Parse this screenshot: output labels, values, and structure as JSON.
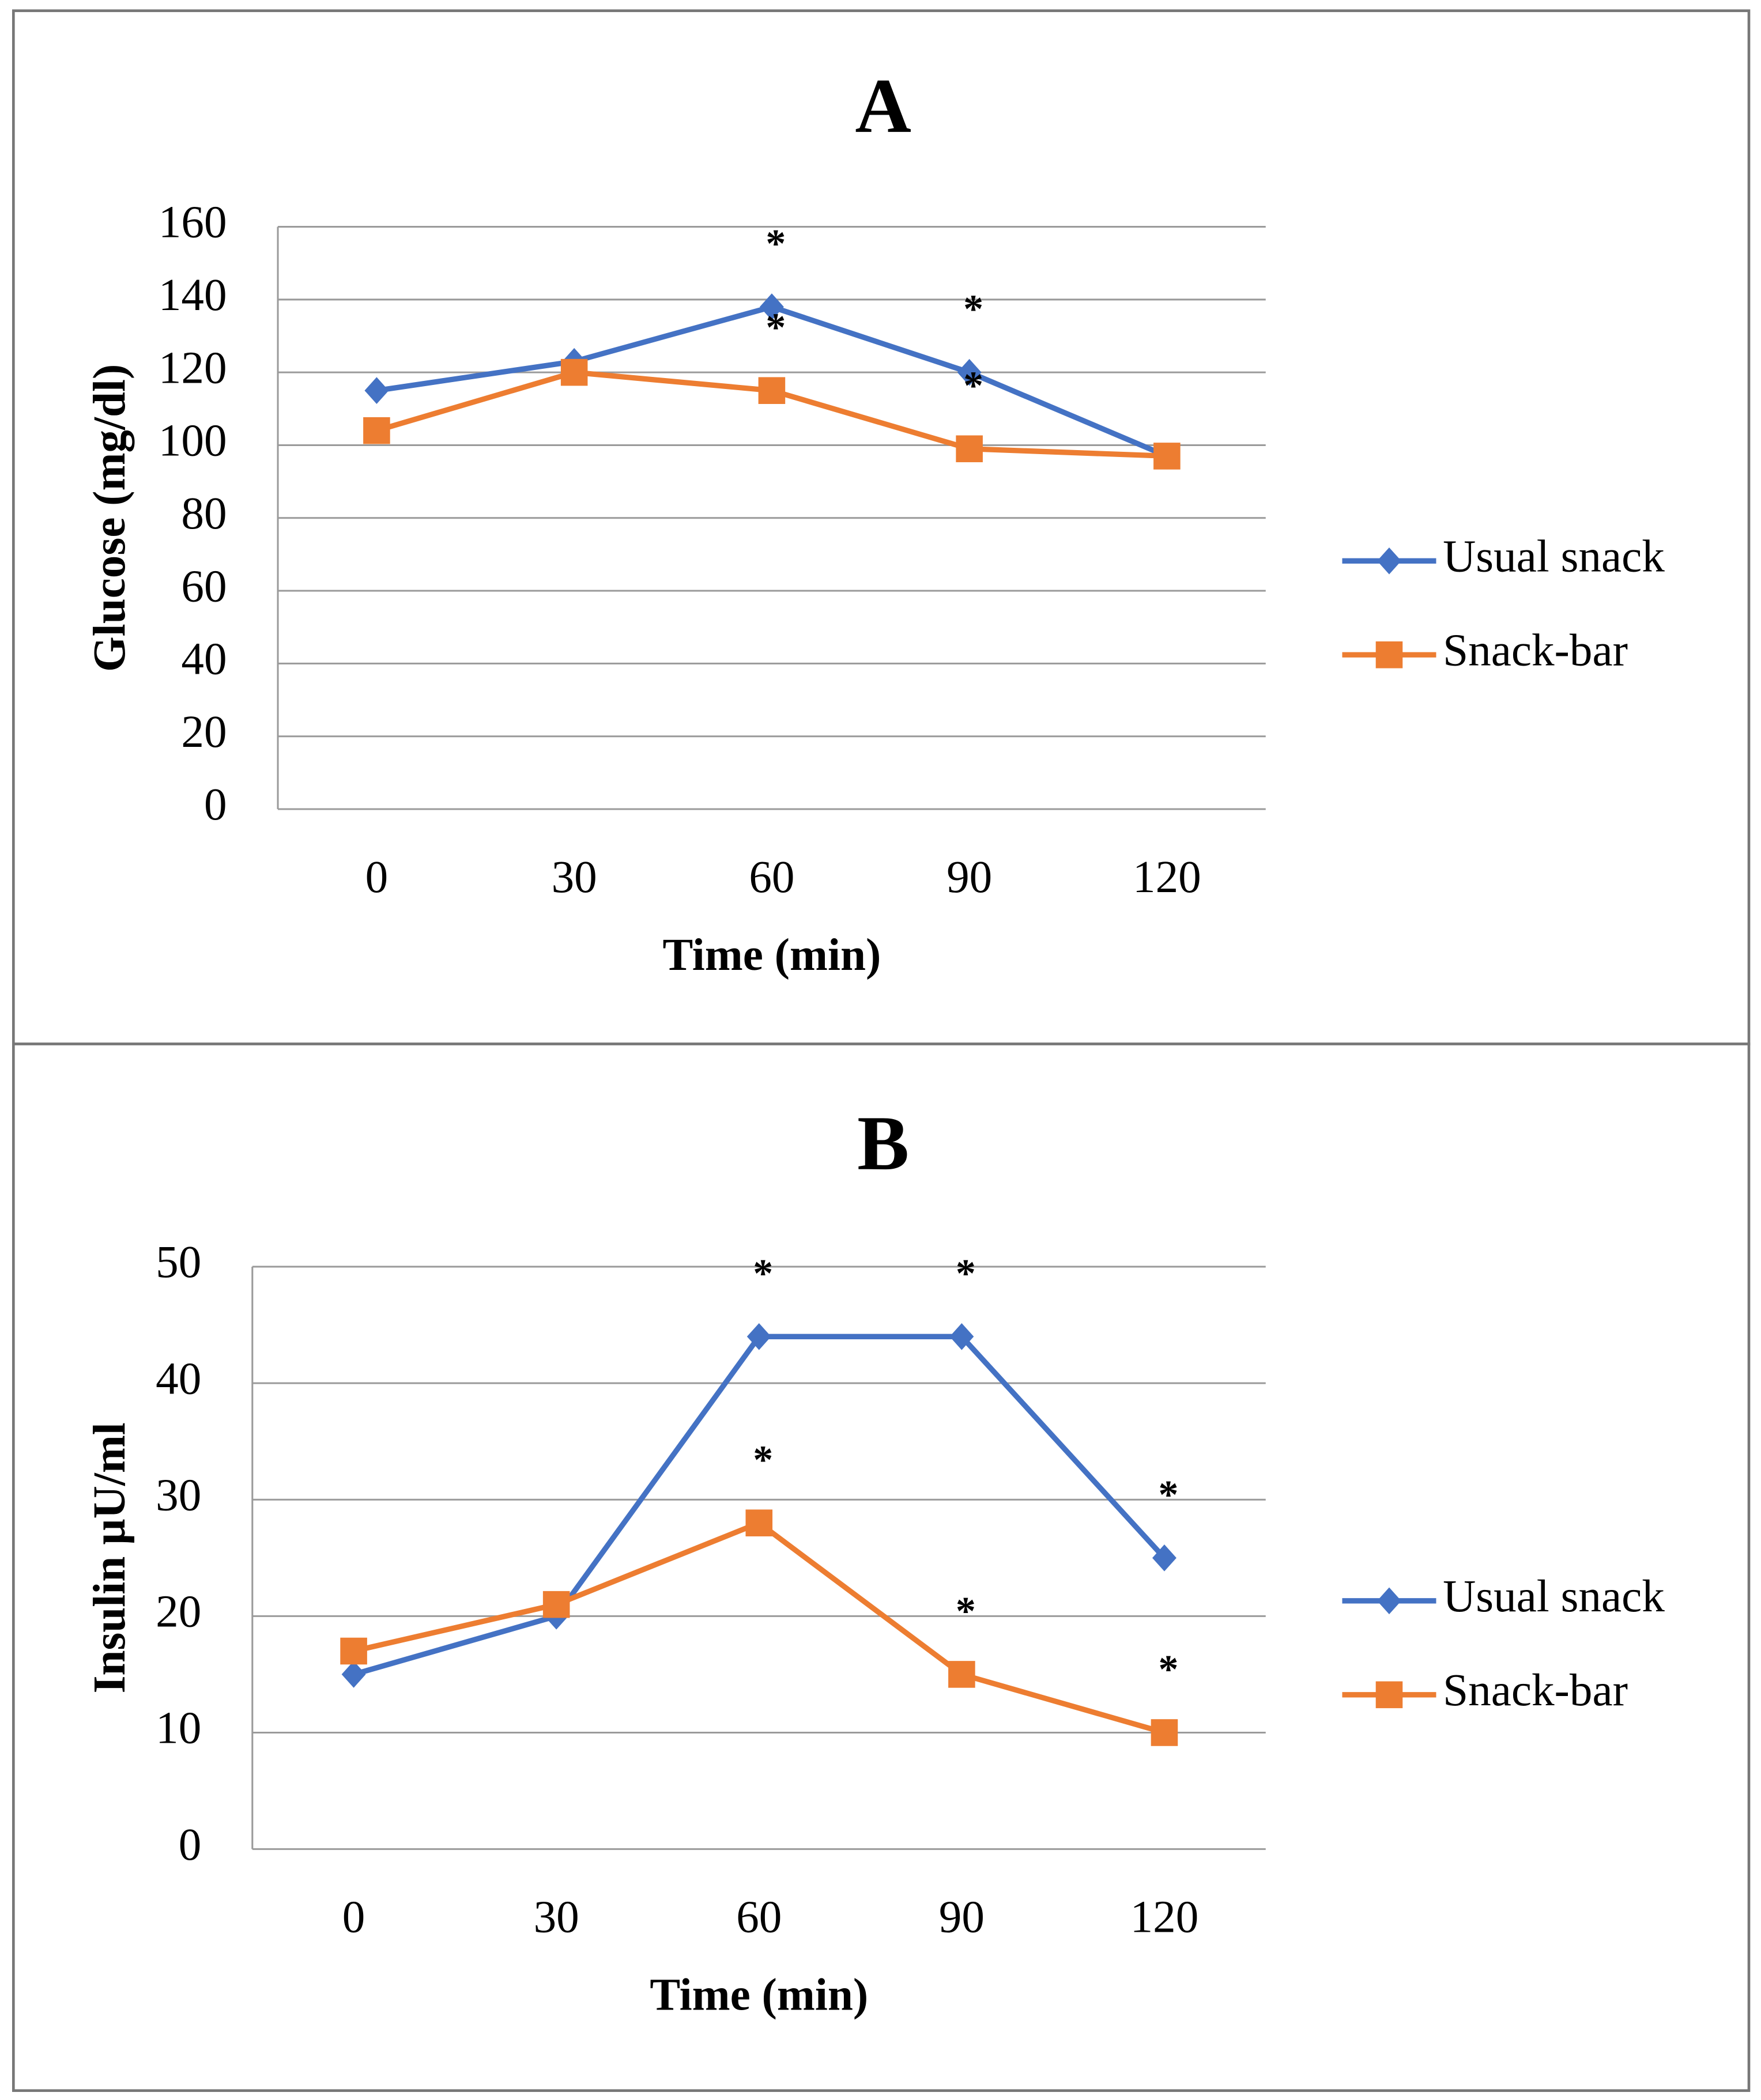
{
  "chart_data": [
    {
      "type": "line",
      "title": "A",
      "x_label": "Time (min)",
      "y_label": "Glucose (mg/dl)",
      "categories": [
        "0",
        "30",
        "60",
        "90",
        "120"
      ],
      "series": [
        {
          "name": "Usual snack",
          "color": "#4472c4",
          "marker": "diamond",
          "values": [
            115,
            123,
            138,
            120,
            97
          ]
        },
        {
          "name": "Snack-bar",
          "color": "#ed7d31",
          "marker": "square",
          "values": [
            104,
            120,
            115,
            99,
            97
          ]
        }
      ],
      "ylim": [
        0,
        160
      ],
      "yticks": [
        0,
        20,
        40,
        60,
        80,
        100,
        120,
        140,
        160
      ],
      "grid": true,
      "legend": "right",
      "annotations": [
        {
          "text": "*",
          "series": 0,
          "index": 2
        },
        {
          "text": "*",
          "series": 1,
          "index": 2
        },
        {
          "text": "*",
          "series": 0,
          "index": 3
        },
        {
          "text": "*",
          "series": 1,
          "index": 3
        }
      ]
    },
    {
      "type": "line",
      "title": "B",
      "x_label": "Time (min)",
      "y_label": "Insulin µU/ml",
      "categories": [
        "0",
        "30",
        "60",
        "90",
        "120"
      ],
      "series": [
        {
          "name": "Usual snack",
          "color": "#4472c4",
          "marker": "diamond",
          "values": [
            15,
            20,
            44,
            44,
            25
          ]
        },
        {
          "name": "Snack-bar",
          "color": "#ed7d31",
          "marker": "square",
          "values": [
            17,
            21,
            28,
            15,
            10
          ]
        }
      ],
      "ylim": [
        0,
        50
      ],
      "yticks": [
        0,
        10,
        20,
        30,
        40,
        50
      ],
      "grid": true,
      "legend": "right",
      "annotations": [
        {
          "text": "*",
          "series": 0,
          "index": 2
        },
        {
          "text": "*",
          "series": 0,
          "index": 3
        },
        {
          "text": "*",
          "series": 1,
          "index": 2
        },
        {
          "text": "*",
          "series": 1,
          "index": 3
        },
        {
          "text": "*",
          "series": 0,
          "index": 4
        },
        {
          "text": "*",
          "series": 1,
          "index": 4
        }
      ]
    }
  ]
}
